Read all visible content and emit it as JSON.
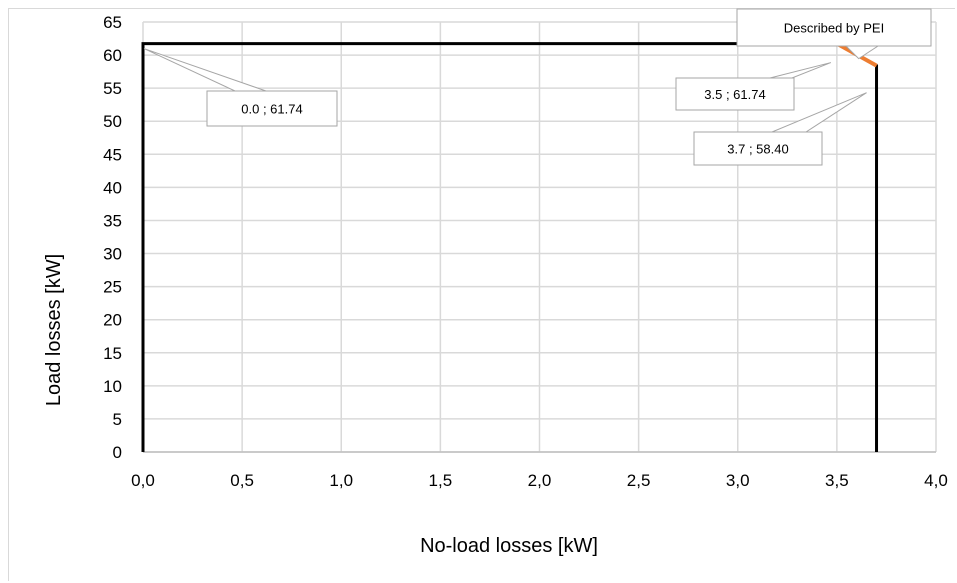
{
  "chart_data": {
    "type": "line",
    "title": "",
    "xlabel": "No-load losses [kW]",
    "ylabel": "Load losses [kW]",
    "xlim": [
      0,
      4
    ],
    "ylim": [
      0,
      65
    ],
    "x_tick_labels": [
      "0,0",
      "0,5",
      "1,0",
      "1,5",
      "2,0",
      "2,5",
      "3,0",
      "3,5",
      "4,0"
    ],
    "y_tick_labels": [
      "0",
      "5",
      "10",
      "15",
      "20",
      "25",
      "30",
      "35",
      "40",
      "45",
      "50",
      "55",
      "60",
      "65"
    ],
    "grid": true,
    "legend": "none",
    "series": [
      {
        "color": "#000000",
        "points": [
          {
            "x": 0.0,
            "y": 0
          },
          {
            "x": 0.0,
            "y": 61.74
          },
          {
            "x": 3.5,
            "y": 61.74
          },
          {
            "x": 3.7,
            "y": 58.4
          },
          {
            "x": 3.7,
            "y": 0
          }
        ]
      },
      {
        "name": "Described by PEI",
        "color": "#ed7d31",
        "points": [
          {
            "x": 3.5,
            "y": 61.74
          },
          {
            "x": 3.7,
            "y": 58.4
          }
        ]
      }
    ],
    "annotations": [
      {
        "text": "0.0 ; 61.74",
        "x": 0.0,
        "y": 61.74
      },
      {
        "text": "3.5 ; 61.74",
        "x": 3.5,
        "y": 61.74
      },
      {
        "text": "3.7 ; 58.40",
        "x": 3.7,
        "y": 58.4
      },
      {
        "text": "Described by PEI",
        "x": 3.6,
        "y": 60.07
      }
    ]
  }
}
